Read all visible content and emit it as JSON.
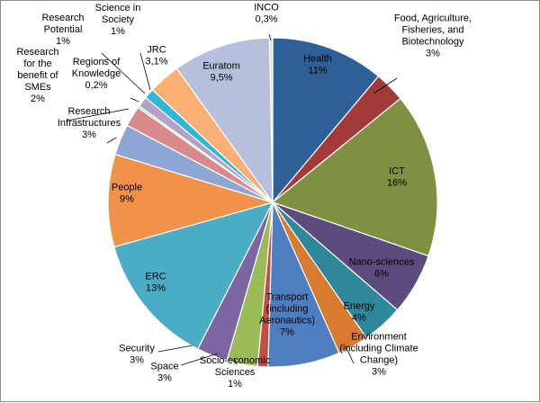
{
  "chart_data": {
    "type": "pie",
    "title": "",
    "slices": [
      {
        "label_lines": [
          "Health",
          "11%"
        ],
        "value": 11,
        "color": "#2E5F97"
      },
      {
        "label_lines": [
          "Food, Agriculture,",
          "Fisheries, and",
          "Biotechnology",
          "3%"
        ],
        "value": 3,
        "color": "#A33A3A"
      },
      {
        "label_lines": [
          "ICT",
          "16%"
        ],
        "value": 16,
        "color": "#7F9140"
      },
      {
        "label_lines": [
          "Nano-sciences",
          "6%"
        ],
        "value": 6,
        "color": "#5E4B7D"
      },
      {
        "label_lines": [
          "Energy",
          "4%"
        ],
        "value": 4,
        "color": "#2F879B"
      },
      {
        "label_lines": [
          "Environment",
          "(including Climate",
          "Change)",
          "3%"
        ],
        "value": 3,
        "color": "#D87A2F"
      },
      {
        "label_lines": [
          "Transport",
          "(including",
          "Aeronautics)",
          "7%"
        ],
        "value": 7,
        "color": "#4D7FC0"
      },
      {
        "label_lines": [
          "Socio-economic",
          "Sciences",
          "1%"
        ],
        "value": 1,
        "color": "#C44C48"
      },
      {
        "label_lines": [
          "Space",
          "3%"
        ],
        "value": 3,
        "color": "#9BBB59"
      },
      {
        "label_lines": [
          "Security",
          "3%"
        ],
        "value": 3,
        "color": "#7C65A0"
      },
      {
        "label_lines": [
          "ERC",
          "13%"
        ],
        "value": 13,
        "color": "#4BACC6"
      },
      {
        "label_lines": [
          "People",
          "9%"
        ],
        "value": 9,
        "color": "#F0924A"
      },
      {
        "label_lines": [
          "Research",
          "Infrastructures",
          "3%"
        ],
        "value": 3,
        "color": "#8DA6D4"
      },
      {
        "label_lines": [
          "Research",
          "for the",
          "benefit of",
          "SMEs",
          "2%"
        ],
        "value": 2,
        "color": "#D98A8A"
      },
      {
        "label_lines": [
          "Regions of",
          "Knowledge",
          "0,2%"
        ],
        "value": 0.2,
        "color": "#C4D79B"
      },
      {
        "label_lines": [
          "Research",
          "Potential",
          "1%"
        ],
        "value": 1,
        "color": "#B3A2C7"
      },
      {
        "label_lines": [
          "Science in",
          "Society",
          "1%"
        ],
        "value": 1,
        "color": "#31B6D6"
      },
      {
        "label_lines": [
          "JRC",
          "3,1%"
        ],
        "value": 3.1,
        "color": "#FAB074"
      },
      {
        "label_lines": [
          "Euratom",
          "9,5%"
        ],
        "value": 9.5,
        "color": "#B6C0DC"
      },
      {
        "label_lines": [
          "INCO",
          "0,3%"
        ],
        "value": 0.3,
        "color": "#E6E0B0"
      }
    ],
    "legend": "none"
  }
}
